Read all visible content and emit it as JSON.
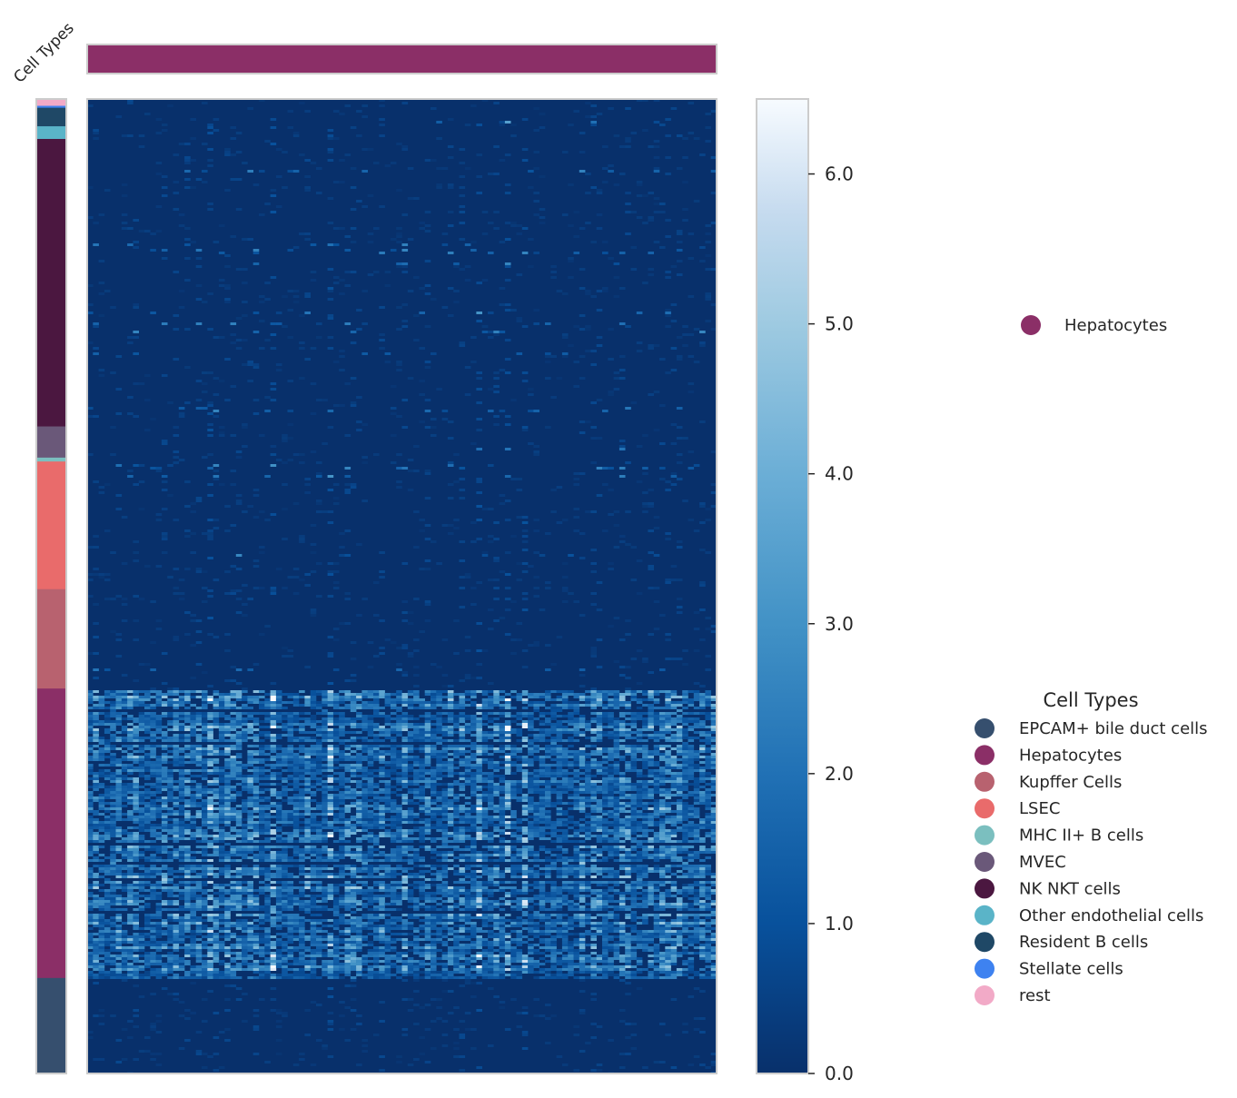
{
  "chart_data": {
    "type": "heatmap",
    "row_annotation_label": "Cell Types",
    "colorbar": {
      "colormap": "Blues_r",
      "vmin": 0.0,
      "vmax": 6.5,
      "ticks": [
        0.0,
        1.0,
        2.0,
        3.0,
        4.0,
        5.0,
        6.0
      ],
      "tick_labels": [
        "0.0",
        "1.0",
        "2.0",
        "3.0",
        "4.0",
        "5.0",
        "6.0"
      ]
    },
    "column_annotation": {
      "groups": [
        {
          "name": "Hepatocytes",
          "color": "#8b2f67",
          "fraction": 1.0
        }
      ]
    },
    "row_annotation": {
      "order_top_to_bottom": [
        {
          "name": "rest",
          "fraction": 0.007
        },
        {
          "name": "Stellate cells",
          "fraction": 0.002
        },
        {
          "name": "Resident B cells",
          "fraction": 0.019
        },
        {
          "name": "Other endothelial cells",
          "fraction": 0.013
        },
        {
          "name": "NK NKT cells",
          "fraction": 0.295
        },
        {
          "name": "MVEC",
          "fraction": 0.032
        },
        {
          "name": "MHC II+ B cells",
          "fraction": 0.004
        },
        {
          "name": "LSEC",
          "fraction": 0.131
        },
        {
          "name": "Kupffer Cells",
          "fraction": 0.102
        },
        {
          "name": "Hepatocytes",
          "fraction": 0.297
        },
        {
          "name": "EPCAM+ bile duct cells",
          "fraction": 0.098
        }
      ]
    },
    "column_legend": {
      "entries": [
        {
          "name": "Hepatocytes",
          "color": "#8b2f67"
        }
      ]
    },
    "row_legend": {
      "title": "Cell Types",
      "entries": [
        {
          "name": "EPCAM+ bile duct cells",
          "color": "#364f6e"
        },
        {
          "name": "Hepatocytes",
          "color": "#8b2f67"
        },
        {
          "name": "Kupffer Cells",
          "color": "#b8626f"
        },
        {
          "name": "LSEC",
          "color": "#e96b6b"
        },
        {
          "name": "MHC II+ B cells",
          "color": "#7bbfbf"
        },
        {
          "name": "MVEC",
          "color": "#6a5879"
        },
        {
          "name": "NK NKT cells",
          "color": "#4b1740"
        },
        {
          "name": "Other endothelial cells",
          "color": "#5ab4c8"
        },
        {
          "name": "Resident B cells",
          "color": "#1f4866"
        },
        {
          "name": "Stellate cells",
          "color": "#3e82f0"
        },
        {
          "name": "rest",
          "color": "#f2aac7"
        }
      ]
    }
  }
}
